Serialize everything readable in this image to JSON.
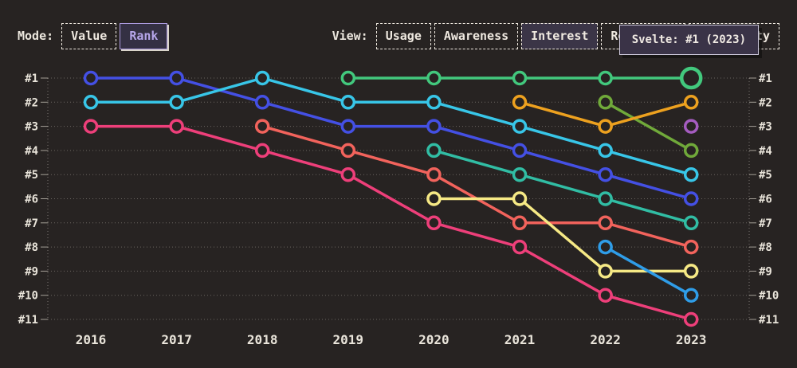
{
  "page": {
    "background": "#272322",
    "text_color": "#ece7de"
  },
  "header": {
    "mode_label": "Mode:",
    "mode_options": [
      {
        "label": "Value",
        "active": false
      },
      {
        "label": "Rank",
        "active": true
      }
    ],
    "view_label": "View:",
    "view_options": [
      {
        "label": "Usage",
        "active": false
      },
      {
        "label": "Awareness",
        "active": false
      },
      {
        "label": "Interest",
        "active": true
      },
      {
        "label": "Retention",
        "active": false
      },
      {
        "label": "Positivity",
        "active": false
      }
    ]
  },
  "tooltip": {
    "text": "Svelte: #1 (2023)"
  },
  "chart_data": {
    "type": "line",
    "variant": "bump-chart-rankings",
    "title": "",
    "x_labels": [
      "2016",
      "2017",
      "2018",
      "2019",
      "2020",
      "2021",
      "2022",
      "2023"
    ],
    "rank_labels": [
      "#1",
      "#2",
      "#3",
      "#4",
      "#5",
      "#6",
      "#7",
      "#8",
      "#9",
      "#10",
      "#11"
    ],
    "axis_note": "rank #1 at top; identical rank labels on left and right axes",
    "grid": true,
    "legend_position": "none",
    "series": [
      {
        "name": "pink",
        "color": "#ee3f7a",
        "points": [
          [
            2016,
            3
          ],
          [
            2017,
            3
          ],
          [
            2018,
            4
          ],
          [
            2019,
            5
          ],
          [
            2020,
            7
          ],
          [
            2021,
            8
          ],
          [
            2022,
            10
          ],
          [
            2023,
            11
          ]
        ]
      },
      {
        "name": "blue",
        "color": "#4450e4",
        "points": [
          [
            2016,
            1
          ],
          [
            2017,
            1
          ],
          [
            2018,
            2
          ],
          [
            2019,
            3
          ],
          [
            2020,
            3
          ],
          [
            2021,
            4
          ],
          [
            2022,
            5
          ],
          [
            2023,
            6
          ]
        ]
      },
      {
        "name": "cyan",
        "color": "#38c6e8",
        "points": [
          [
            2016,
            2
          ],
          [
            2017,
            2
          ],
          [
            2018,
            1
          ],
          [
            2019,
            2
          ],
          [
            2020,
            2
          ],
          [
            2021,
            3
          ],
          [
            2022,
            4
          ],
          [
            2023,
            5
          ]
        ]
      },
      {
        "name": "teal",
        "color": "#31bda4",
        "points": [
          [
            2020,
            4
          ],
          [
            2021,
            5
          ],
          [
            2022,
            6
          ],
          [
            2023,
            7
          ]
        ]
      },
      {
        "name": "salmon",
        "color": "#f2635c",
        "points": [
          [
            2018,
            3
          ],
          [
            2019,
            4
          ],
          [
            2020,
            5
          ],
          [
            2021,
            7
          ],
          [
            2022,
            7
          ],
          [
            2023,
            8
          ]
        ]
      },
      {
        "name": "yellow",
        "color": "#f6e985",
        "points": [
          [
            2020,
            6
          ],
          [
            2021,
            6
          ],
          [
            2022,
            9
          ],
          [
            2023,
            9
          ]
        ]
      },
      {
        "name": "sky-blue",
        "color": "#2f9de8",
        "points": [
          [
            2022,
            8
          ],
          [
            2023,
            10
          ]
        ]
      },
      {
        "name": "olive-green",
        "color": "#70a93a",
        "points": [
          [
            2022,
            2
          ],
          [
            2023,
            4
          ]
        ]
      },
      {
        "name": "orange",
        "color": "#eda11f",
        "points": [
          [
            2021,
            2
          ],
          [
            2022,
            3
          ],
          [
            2023,
            2
          ]
        ]
      },
      {
        "name": "Svelte",
        "color": "#42c87d",
        "points": [
          [
            2019,
            1
          ],
          [
            2020,
            1
          ],
          [
            2021,
            1
          ],
          [
            2022,
            1
          ],
          [
            2023,
            1
          ]
        ]
      },
      {
        "name": "purple",
        "color": "#a55cc0",
        "points": [
          [
            2023,
            3
          ]
        ]
      }
    ],
    "highlight": {
      "series": "Svelte",
      "year": 2023,
      "rank": 1
    }
  }
}
